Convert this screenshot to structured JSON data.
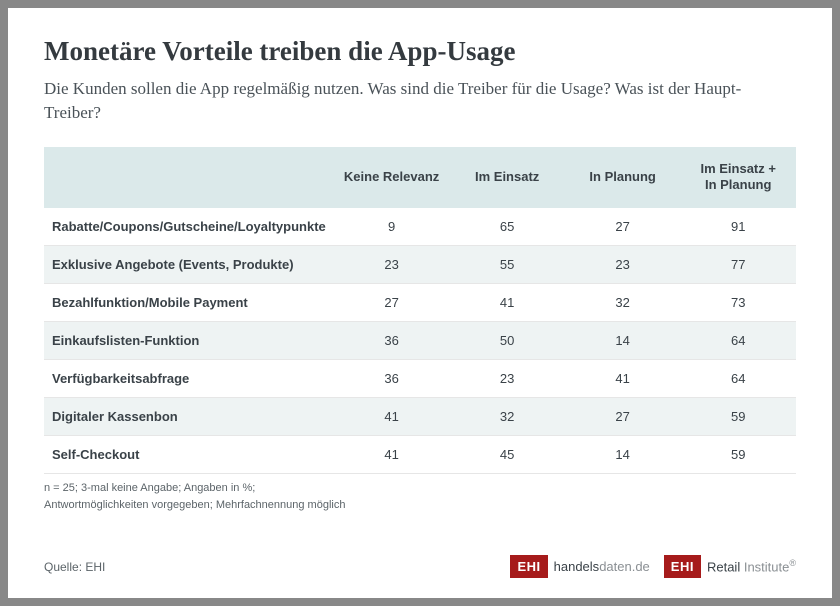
{
  "title": "Monetäre Vorteile treiben die App-Usage",
  "subtitle": "Die Kunden sollen die App regelmäßig nutzen. Was sind die Treiber für die Usage? Was ist der Haupt-Treiber?",
  "table": {
    "type": "table",
    "header_bg": "#dbe9ea",
    "row_alt_bg": "#eef3f3",
    "row_bg": "#ffffff",
    "text_color": "#3a4248",
    "font_size_pt": 10,
    "columns": [
      "",
      "Keine Relevanz",
      "Im Einsatz",
      "In Planung",
      "Im Einsatz + In Planung"
    ],
    "rows": [
      {
        "label": "Rabatte/Coupons/Gutscheine/Loyaltypunkte",
        "values": [
          9,
          65,
          27,
          91
        ]
      },
      {
        "label": "Exklusive Angebote (Events, Produkte)",
        "values": [
          23,
          55,
          23,
          77
        ]
      },
      {
        "label": "Bezahlfunktion/Mobile Payment",
        "values": [
          27,
          41,
          32,
          73
        ]
      },
      {
        "label": "Einkaufslisten-Funktion",
        "values": [
          36,
          50,
          14,
          64
        ]
      },
      {
        "label": "Verfügbarkeitsabfrage",
        "values": [
          36,
          23,
          41,
          64
        ]
      },
      {
        "label": "Digitaler Kassenbon",
        "values": [
          41,
          32,
          27,
          59
        ]
      },
      {
        "label": "Self-Checkout",
        "values": [
          41,
          45,
          14,
          59
        ]
      }
    ]
  },
  "footnote_line1": "n = 25; 3-mal keine Angabe; Angaben in %;",
  "footnote_line2": "Antwortmöglichkeiten vorgegeben; Mehrfachnennung möglich",
  "source_label": "Quelle: EHI",
  "logos": {
    "badge": "EHI",
    "badge_bg": "#a61b1b",
    "site_dark": "handels",
    "site_light": "daten.de",
    "inst_dark": "Retail",
    "inst_light": " Institute"
  },
  "styling": {
    "card_bg": "#ffffff",
    "page_bg": "#888888",
    "title_color": "#343a3f",
    "title_fontsize_pt": 20,
    "subtitle_color": "#4a5258",
    "subtitle_fontsize_pt": 13
  }
}
